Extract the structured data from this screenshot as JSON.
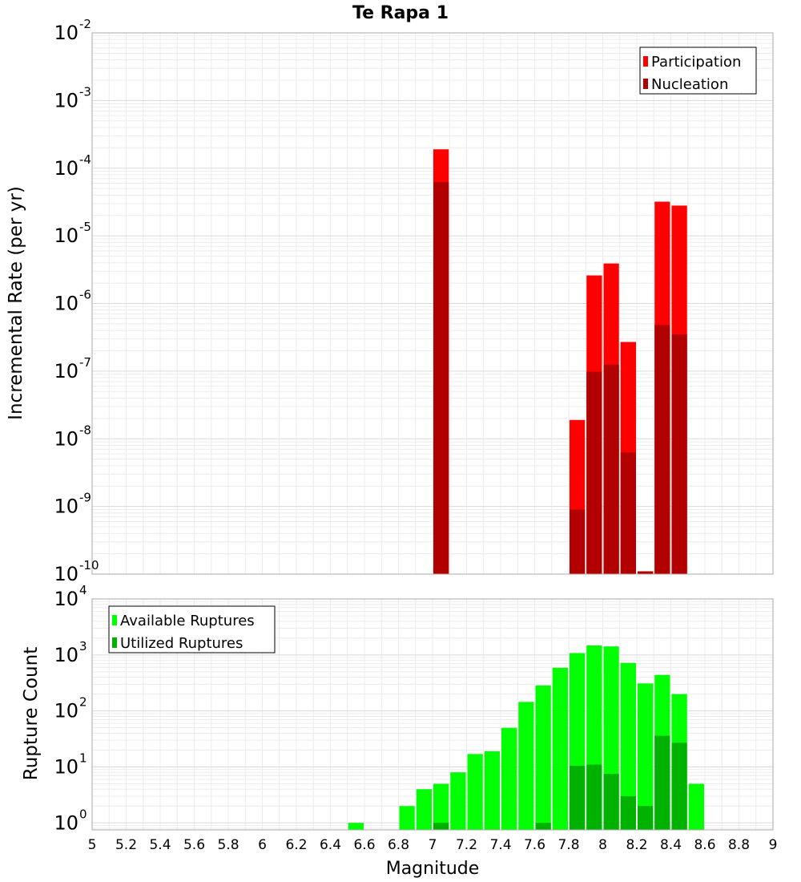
{
  "chart_data": [
    {
      "type": "bar",
      "title": "Te Rapa 1",
      "ylabel": "Incremental Rate (per yr)",
      "yscale": "log",
      "ylim": [
        1e-10,
        0.01
      ],
      "xlim": [
        5,
        9
      ],
      "bin_width": 0.1,
      "grid": true,
      "legend_position": "top-right",
      "y_tick_exponents": [
        "-10",
        "-9",
        "-8",
        "-7",
        "-6",
        "-5",
        "-4",
        "-3",
        "-2"
      ],
      "series": [
        {
          "name": "Participation",
          "color": "#ff0000",
          "x": [
            7.05,
            7.85,
            7.95,
            8.05,
            8.15,
            8.25,
            8.35,
            8.45
          ],
          "values": [
            0.00019,
            1.9e-08,
            2.6e-06,
            3.9e-06,
            2.7e-07,
            1.1e-10,
            3.2e-05,
            2.8e-05
          ]
        },
        {
          "name": "Nucleation",
          "color": "#b20000",
          "x": [
            7.05,
            7.85,
            7.95,
            8.05,
            8.15,
            8.25,
            8.35,
            8.45
          ],
          "values": [
            6.2e-05,
            9e-10,
            9.8e-08,
            1.25e-07,
            6.3e-09,
            1.1e-10,
            4.8e-07,
            3.5e-07
          ]
        }
      ]
    },
    {
      "type": "bar",
      "xlabel": "Magnitude",
      "ylabel": "Rupture Count",
      "yscale": "log",
      "ylim": [
        0.75,
        10000
      ],
      "xlim": [
        5,
        9
      ],
      "bin_width": 0.1,
      "grid": true,
      "legend_position": "top-left",
      "x_ticks": [
        "5",
        "5.2",
        "5.4",
        "5.6",
        "5.8",
        "6",
        "6.2",
        "6.4",
        "6.6",
        "6.8",
        "7",
        "7.2",
        "7.4",
        "7.6",
        "7.8",
        "8",
        "8.2",
        "8.4",
        "8.6",
        "8.8",
        "9"
      ],
      "y_tick_exponents": [
        "0",
        "1",
        "2",
        "3",
        "4"
      ],
      "series": [
        {
          "name": "Available Ruptures",
          "color": "#00ff00",
          "x": [
            6.55,
            6.85,
            6.95,
            7.05,
            7.15,
            7.25,
            7.35,
            7.45,
            7.55,
            7.65,
            7.75,
            7.85,
            7.95,
            8.05,
            8.15,
            8.25,
            8.35,
            8.45,
            8.55
          ],
          "values": [
            1,
            2,
            4,
            5,
            8,
            17,
            19,
            50,
            145,
            285,
            590,
            1080,
            1480,
            1420,
            720,
            310,
            440,
            200,
            5
          ]
        },
        {
          "name": "Utilized Ruptures",
          "color": "#00b200",
          "x": [
            7.05,
            7.65,
            7.85,
            7.95,
            8.05,
            8.15,
            8.25,
            8.35,
            8.45
          ],
          "values": [
            1,
            1,
            10.5,
            11,
            7.5,
            3,
            2,
            36,
            27
          ]
        }
      ]
    }
  ]
}
